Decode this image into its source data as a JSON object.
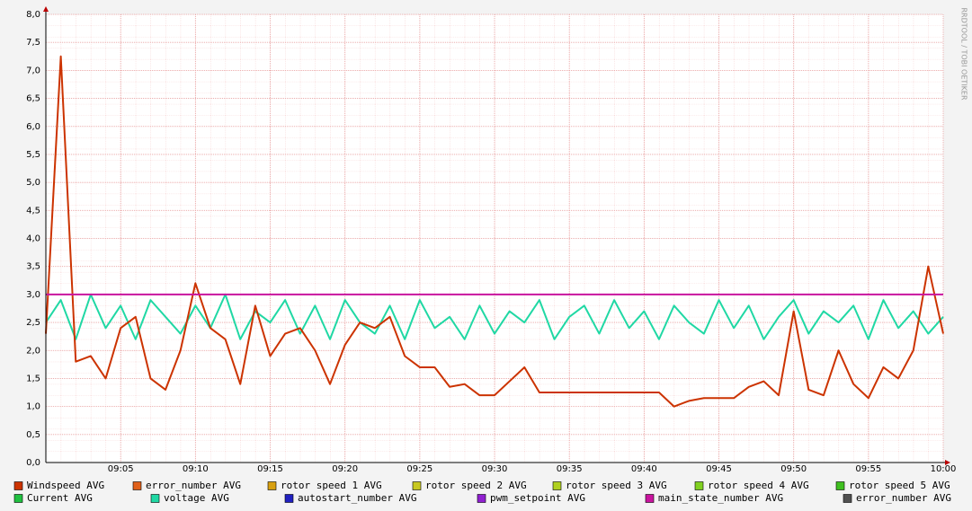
{
  "chart_data": {
    "type": "line",
    "credit": "RRDTOOL / TOBI OETIKER",
    "x": [
      "09:00",
      "09:01",
      "09:02",
      "09:03",
      "09:04",
      "09:05",
      "09:06",
      "09:07",
      "09:08",
      "09:09",
      "09:10",
      "09:11",
      "09:12",
      "09:13",
      "09:14",
      "09:15",
      "09:16",
      "09:17",
      "09:18",
      "09:19",
      "09:20",
      "09:21",
      "09:22",
      "09:23",
      "09:24",
      "09:25",
      "09:26",
      "09:27",
      "09:28",
      "09:29",
      "09:30",
      "09:31",
      "09:32",
      "09:33",
      "09:34",
      "09:35",
      "09:36",
      "09:37",
      "09:38",
      "09:39",
      "09:40",
      "09:41",
      "09:42",
      "09:43",
      "09:44",
      "09:45",
      "09:46",
      "09:47",
      "09:48",
      "09:49",
      "09:50",
      "09:51",
      "09:52",
      "09:53",
      "09:54",
      "09:55",
      "09:56",
      "09:57",
      "09:58",
      "09:59",
      "10:00"
    ],
    "xlim": [
      "09:00",
      "10:00"
    ],
    "xticks": [
      "09:05",
      "09:10",
      "09:15",
      "09:20",
      "09:25",
      "09:30",
      "09:35",
      "09:40",
      "09:45",
      "09:50",
      "09:55",
      "10:00"
    ],
    "ylim": [
      0,
      8
    ],
    "yticks": [
      {
        "value": 0,
        "label": "0,0"
      },
      {
        "value": 0.5,
        "label": "0,5"
      },
      {
        "value": 1,
        "label": "1,0"
      },
      {
        "value": 1.5,
        "label": "1,5"
      },
      {
        "value": 2,
        "label": "2,0"
      },
      {
        "value": 2.5,
        "label": "2,5"
      },
      {
        "value": 3,
        "label": "3,0"
      },
      {
        "value": 3.5,
        "label": "3,5"
      },
      {
        "value": 4,
        "label": "4,0"
      },
      {
        "value": 4.5,
        "label": "4,5"
      },
      {
        "value": 5,
        "label": "5,0"
      },
      {
        "value": 5.5,
        "label": "5,5"
      },
      {
        "value": 6,
        "label": "6,0"
      },
      {
        "value": 6.5,
        "label": "6,5"
      },
      {
        "value": 7,
        "label": "7,0"
      },
      {
        "value": 7.5,
        "label": "7,5"
      },
      {
        "value": 8,
        "label": "8,0"
      }
    ],
    "grid": true,
    "legend": "bottom",
    "series": [
      {
        "name": "Windspeed AVG",
        "color": "#cc3300",
        "values": [
          2.3,
          7.25,
          1.8,
          1.9,
          1.5,
          2.4,
          2.6,
          1.5,
          1.3,
          2.0,
          3.2,
          2.4,
          2.2,
          1.4,
          2.8,
          1.9,
          2.3,
          2.4,
          2.0,
          1.4,
          2.1,
          2.5,
          2.4,
          2.6,
          1.9,
          1.7,
          1.7,
          1.35,
          1.4,
          1.2,
          1.2,
          1.45,
          1.7,
          1.25,
          1.25,
          1.25,
          1.25,
          1.25,
          1.25,
          1.25,
          1.25,
          1.25,
          1.0,
          1.1,
          1.15,
          1.15,
          1.15,
          1.35,
          1.45,
          1.2,
          2.7,
          1.3,
          1.2,
          2.0,
          1.4,
          1.15,
          1.7,
          1.5,
          2.0,
          3.5,
          2.3
        ]
      },
      {
        "name": "error_number AVG",
        "color": "#e0601a"
      },
      {
        "name": "rotor speed 1 AVG",
        "color": "#d8a010"
      },
      {
        "name": "rotor speed 2 AVG",
        "color": "#c8c820"
      },
      {
        "name": "rotor speed 3 AVG",
        "color": "#b0d020"
      },
      {
        "name": "rotor speed 4 AVG",
        "color": "#80d020"
      },
      {
        "name": "rotor speed 5 AVG",
        "color": "#40c020"
      },
      {
        "name": "Current AVG",
        "color": "#20c040"
      },
      {
        "name": "voltage AVG",
        "color": "#20d8a4",
        "values": [
          2.5,
          2.9,
          2.2,
          3.0,
          2.4,
          2.8,
          2.2,
          2.9,
          2.6,
          2.3,
          2.8,
          2.4,
          3.0,
          2.2,
          2.7,
          2.5,
          2.9,
          2.3,
          2.8,
          2.2,
          2.9,
          2.5,
          2.3,
          2.8,
          2.2,
          2.9,
          2.4,
          2.6,
          2.2,
          2.8,
          2.3,
          2.7,
          2.5,
          2.9,
          2.2,
          2.6,
          2.8,
          2.3,
          2.9,
          2.4,
          2.7,
          2.2,
          2.8,
          2.5,
          2.3,
          2.9,
          2.4,
          2.8,
          2.2,
          2.6,
          2.9,
          2.3,
          2.7,
          2.5,
          2.8,
          2.2,
          2.9,
          2.4,
          2.7,
          2.3,
          2.6
        ]
      },
      {
        "name": "autostart_number AVG",
        "color": "#2020c0"
      },
      {
        "name": "pwm_setpoint AVG",
        "color": "#9020d0"
      },
      {
        "name": "main_state_number AVG",
        "color": "#c8149e",
        "values": [
          3,
          3,
          3,
          3,
          3,
          3,
          3,
          3,
          3,
          3,
          3,
          3,
          3,
          3,
          3,
          3,
          3,
          3,
          3,
          3,
          3,
          3,
          3,
          3,
          3,
          3,
          3,
          3,
          3,
          3,
          3,
          3,
          3,
          3,
          3,
          3,
          3,
          3,
          3,
          3,
          3,
          3,
          3,
          3,
          3,
          3,
          3,
          3,
          3,
          3,
          3,
          3,
          3,
          3,
          3,
          3,
          3,
          3,
          3,
          3,
          3
        ]
      },
      {
        "name": "error_number AVG",
        "color": "#505050"
      }
    ]
  }
}
